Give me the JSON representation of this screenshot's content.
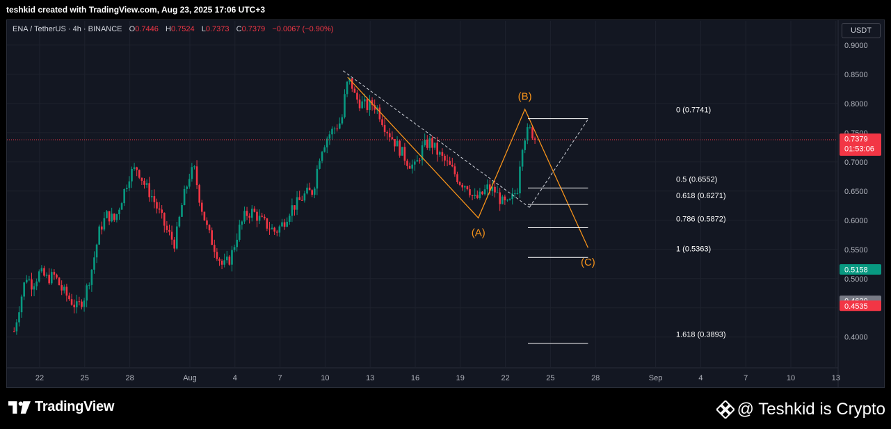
{
  "header": {
    "created_by": "teshkid created with TradingView.com, Aug 23, 2025 17:06 UTC+3"
  },
  "legend": {
    "symbol": "ENA / TetherUS · 4h · BINANCE",
    "o_label": "O",
    "o": "0.7446",
    "h_label": "H",
    "h": "0.7524",
    "l_label": "L",
    "l": "0.7373",
    "c_label": "C",
    "c": "0.7379",
    "change": "−0.0067 (−0.90%)"
  },
  "currency_button": "USDT",
  "footer": {
    "brand": "TradingView",
    "watermark": "@ Teshkid is Crypto"
  },
  "colors": {
    "background": "#131722",
    "up": "#089981",
    "down": "#f23645",
    "pattern": "#f7931a",
    "grid": "#1e222d"
  },
  "chart_data": {
    "type": "candlestick",
    "timeframe": "4h",
    "ylim": [
      0.355,
      0.935
    ],
    "y_ticks": [
      "0.4000",
      "0.4500",
      "0.5000",
      "0.5500",
      "0.6000",
      "0.6500",
      "0.7000",
      "0.7500",
      "0.8000",
      "0.8500",
      "0.9000"
    ],
    "x_ticks": [
      {
        "label": "22",
        "day": 0
      },
      {
        "label": "25",
        "day": 3
      },
      {
        "label": "28",
        "day": 6
      },
      {
        "label": "Aug",
        "day": 10
      },
      {
        "label": "4",
        "day": 13
      },
      {
        "label": "7",
        "day": 16
      },
      {
        "label": "10",
        "day": 19
      },
      {
        "label": "13",
        "day": 22
      },
      {
        "label": "16",
        "day": 25
      },
      {
        "label": "19",
        "day": 28
      },
      {
        "label": "22",
        "day": 31
      },
      {
        "label": "25",
        "day": 34
      },
      {
        "label": "28",
        "day": 37
      },
      {
        "label": "Sep",
        "day": 41
      },
      {
        "label": "4",
        "day": 44
      },
      {
        "label": "7",
        "day": 47
      },
      {
        "label": "10",
        "day": 50
      },
      {
        "label": "13",
        "day": 53
      }
    ],
    "price_path": [
      [
        -1.7,
        0.41
      ],
      [
        -1.3,
        0.46
      ],
      [
        -0.9,
        0.505
      ],
      [
        -0.5,
        0.49
      ],
      [
        0.0,
        0.51
      ],
      [
        0.5,
        0.5
      ],
      [
        1.0,
        0.505
      ],
      [
        1.5,
        0.48
      ],
      [
        2.0,
        0.465
      ],
      [
        2.5,
        0.45
      ],
      [
        3.0,
        0.47
      ],
      [
        3.5,
        0.52
      ],
      [
        4.0,
        0.585
      ],
      [
        4.5,
        0.61
      ],
      [
        5.0,
        0.6
      ],
      [
        5.5,
        0.64
      ],
      [
        6.0,
        0.68
      ],
      [
        6.5,
        0.69
      ],
      [
        7.0,
        0.66
      ],
      [
        7.5,
        0.64
      ],
      [
        8.0,
        0.61
      ],
      [
        8.5,
        0.58
      ],
      [
        9.0,
        0.56
      ],
      [
        9.5,
        0.63
      ],
      [
        10.0,
        0.68
      ],
      [
        10.3,
        0.685
      ],
      [
        10.7,
        0.63
      ],
      [
        11.2,
        0.58
      ],
      [
        11.7,
        0.55
      ],
      [
        12.2,
        0.52
      ],
      [
        12.7,
        0.535
      ],
      [
        13.2,
        0.58
      ],
      [
        13.7,
        0.61
      ],
      [
        14.2,
        0.615
      ],
      [
        14.7,
        0.6
      ],
      [
        15.2,
        0.59
      ],
      [
        15.7,
        0.58
      ],
      [
        16.2,
        0.595
      ],
      [
        16.7,
        0.62
      ],
      [
        17.2,
        0.63
      ],
      [
        17.7,
        0.645
      ],
      [
        18.2,
        0.65
      ],
      [
        18.7,
        0.72
      ],
      [
        19.2,
        0.745
      ],
      [
        19.7,
        0.76
      ],
      [
        20.1,
        0.77
      ],
      [
        20.4,
        0.83
      ],
      [
        20.7,
        0.84
      ],
      [
        21.0,
        0.81
      ],
      [
        21.4,
        0.8
      ],
      [
        21.8,
        0.795
      ],
      [
        22.2,
        0.8
      ],
      [
        22.5,
        0.79
      ],
      [
        23.0,
        0.76
      ],
      [
        23.5,
        0.74
      ],
      [
        24.0,
        0.72
      ],
      [
        24.5,
        0.7
      ],
      [
        25.0,
        0.69
      ],
      [
        25.5,
        0.725
      ],
      [
        26.0,
        0.735
      ],
      [
        26.5,
        0.715
      ],
      [
        27.0,
        0.7
      ],
      [
        27.5,
        0.685
      ],
      [
        28.0,
        0.665
      ],
      [
        28.5,
        0.66
      ],
      [
        28.9,
        0.635
      ],
      [
        29.3,
        0.64
      ],
      [
        29.8,
        0.655
      ],
      [
        30.3,
        0.65
      ],
      [
        30.8,
        0.63
      ],
      [
        31.2,
        0.625
      ],
      [
        31.6,
        0.645
      ],
      [
        31.9,
        0.66
      ],
      [
        32.0,
        0.72
      ],
      [
        32.3,
        0.745
      ],
      [
        32.6,
        0.755
      ],
      [
        32.9,
        0.745
      ],
      [
        33.0,
        0.738
      ]
    ],
    "current_price": {
      "value": "0.7379",
      "countdown": "01:53:06"
    },
    "price_labels": [
      {
        "value": "0.5158",
        "color": "#089981"
      },
      {
        "value": "0.4620",
        "color": "#787b86"
      },
      {
        "value": "0.4535",
        "color": "#f23645"
      }
    ],
    "fib_levels": [
      {
        "label": "0 (0.7741)",
        "value": 0.7741
      },
      {
        "label": "0.5 (0.6552)",
        "value": 0.6552
      },
      {
        "label": "0.618 (0.6271)",
        "value": 0.6271
      },
      {
        "label": "0.786 (0.5872)",
        "value": 0.5872
      },
      {
        "label": "1 (0.5363)",
        "value": 0.5363
      },
      {
        "label": "1.618 (0.3893)",
        "value": 0.3893
      }
    ],
    "fib_range_days": [
      32.5,
      36.5
    ],
    "abc_pattern": [
      {
        "label": "",
        "day": 20.5,
        "value": 0.845
      },
      {
        "label": "(A)",
        "day": 29.2,
        "value": 0.604
      },
      {
        "label": "(B)",
        "day": 32.3,
        "value": 0.79
      },
      {
        "label": "(C)",
        "day": 36.5,
        "value": 0.553
      }
    ],
    "trend_lines": [
      {
        "from": [
          20.2,
          0.856
        ],
        "to": [
          32.6,
          0.622
        ]
      },
      {
        "from": [
          32.6,
          0.622
        ],
        "to": [
          36.5,
          0.773
        ]
      }
    ]
  }
}
